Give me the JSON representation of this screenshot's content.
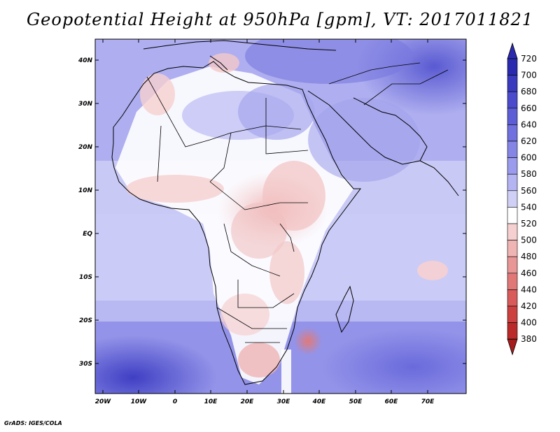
{
  "title": "Geopotential Height at 950hPa [gpm], VT: 2017011821",
  "footer": "GrADS: IGES/COLA",
  "map": {
    "lat_labels": [
      "40N",
      "30N",
      "20N",
      "10N",
      "EQ",
      "10S",
      "20S",
      "30S"
    ],
    "lon_labels": [
      "20W",
      "10W",
      "0",
      "10E",
      "20E",
      "30E",
      "40E",
      "50E",
      "60E",
      "70E"
    ],
    "lat_range": [
      -37,
      45
    ],
    "lon_range": [
      -22,
      80
    ]
  },
  "colorbar": {
    "levels": [
      "720",
      "700",
      "680",
      "660",
      "640",
      "620",
      "600",
      "580",
      "560",
      "540",
      "520",
      "500",
      "480",
      "460",
      "440",
      "420",
      "400",
      "380"
    ],
    "colors": [
      "#2a2ab0",
      "#3a3abf",
      "#4b4bcc",
      "#5d5dd6",
      "#7070df",
      "#8585e6",
      "#9b9bed",
      "#b4b4f2",
      "#d0d0f7",
      "#ffffff",
      "#f6d0d0",
      "#efb4b4",
      "#e89696",
      "#e07878",
      "#d85a5a",
      "#cc4040",
      "#bb2a2a",
      "#a51c1c"
    ]
  }
}
